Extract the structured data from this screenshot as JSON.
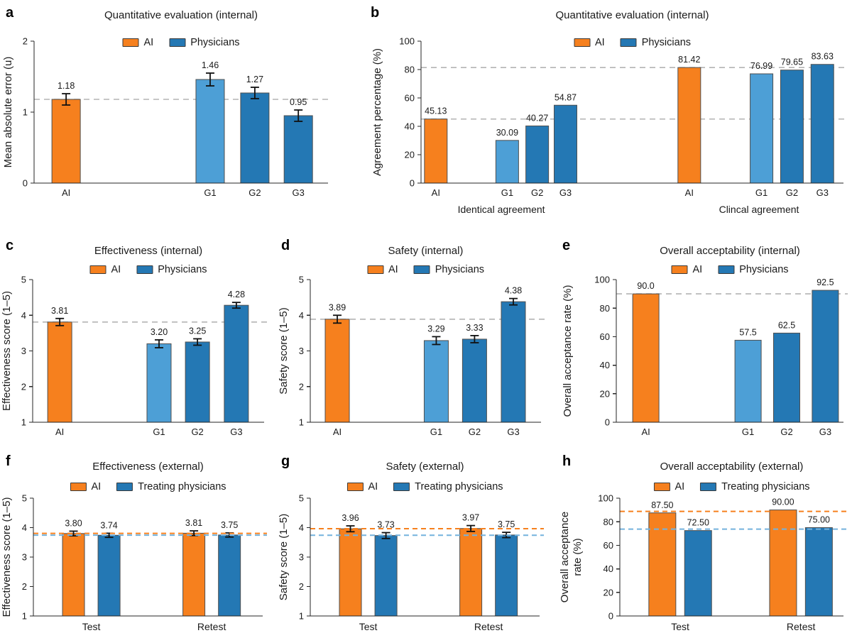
{
  "figure_background": "#ffffff",
  "colors": {
    "ai_orange": "#F6801E",
    "physicians_blue": "#2478B4",
    "physicians_light_blue": "#4D9FD6",
    "bar_edge": "#4F4F4F",
    "gray_dash": "#B3B3B3",
    "orange_dash": "#F6801E",
    "blue_dash": "#74B2DE",
    "axis": "#262626",
    "text": "#1A1A1A",
    "error_bar": "#111111"
  },
  "chart_data": [
    {
      "panel_letter": "a",
      "type": "bar",
      "title": "Quantitative evaluation (internal)",
      "ylabel_lines": [
        "Mean absolute error (u)"
      ],
      "ylim": [
        0,
        2
      ],
      "yticks": [
        0,
        1,
        2
      ],
      "legend": [
        {
          "label": "AI",
          "color": "ai_orange"
        },
        {
          "label": "Physicians",
          "color": "physicians_blue"
        }
      ],
      "bars": [
        {
          "tick": "AI",
          "value": 1.18,
          "display": "1.18",
          "err": 0.08,
          "color": "ai_orange",
          "pos": 0.109
        },
        {
          "tick": "G1",
          "value": 1.46,
          "display": "1.46",
          "err": 0.09,
          "color": "physicians_light_blue",
          "pos": 0.599
        },
        {
          "tick": "G2",
          "value": 1.27,
          "display": "1.27",
          "err": 0.08,
          "color": "physicians_blue",
          "pos": 0.751
        },
        {
          "tick": "G3",
          "value": 0.95,
          "display": "0.95",
          "err": 0.08,
          "color": "physicians_blue",
          "pos": 0.899
        }
      ],
      "group_labels": [],
      "ref_lines": [
        {
          "value": 1.18,
          "color": "gray_dash",
          "front": false
        }
      ]
    },
    {
      "panel_letter": "b",
      "type": "bar",
      "title": "Quantitative evaluation (internal)",
      "ylabel_lines": [
        "Agreement percentage (%)"
      ],
      "ylim": [
        0,
        100
      ],
      "yticks": [
        0,
        20,
        40,
        60,
        80,
        100
      ],
      "legend": [
        {
          "label": "AI",
          "color": "ai_orange"
        },
        {
          "label": "Physicians",
          "color": "physicians_blue"
        }
      ],
      "bars": [
        {
          "tick": "AI",
          "value": 45.13,
          "display": "45.13",
          "err": null,
          "color": "ai_orange",
          "pos": 0.035
        },
        {
          "tick": "G1",
          "value": 30.09,
          "display": "30.09",
          "err": null,
          "color": "physicians_light_blue",
          "pos": 0.204
        },
        {
          "tick": "G2",
          "value": 40.27,
          "display": "40.27",
          "err": null,
          "color": "physicians_blue",
          "pos": 0.275
        },
        {
          "tick": "G3",
          "value": 54.87,
          "display": "54.87",
          "err": null,
          "color": "physicians_blue",
          "pos": 0.342
        },
        {
          "tick": "AI",
          "value": 81.42,
          "display": "81.42",
          "err": null,
          "color": "ai_orange",
          "pos": 0.635
        },
        {
          "tick": "G1",
          "value": 76.99,
          "display": "76.99",
          "err": null,
          "color": "physicians_light_blue",
          "pos": 0.806
        },
        {
          "tick": "G2",
          "value": 79.65,
          "display": "79.65",
          "err": null,
          "color": "physicians_blue",
          "pos": 0.878
        },
        {
          "tick": "G3",
          "value": 83.63,
          "display": "83.63",
          "err": null,
          "color": "physicians_blue",
          "pos": 0.95
        }
      ],
      "group_labels": [
        {
          "label": "Identical agreement",
          "pos": 0.19
        },
        {
          "label": "Clincal agreement",
          "pos": 0.8
        }
      ],
      "ref_lines": [
        {
          "value": 45.13,
          "color": "gray_dash",
          "front": false
        },
        {
          "value": 81.42,
          "color": "gray_dash",
          "front": false
        }
      ]
    },
    {
      "panel_letter": "c",
      "type": "bar",
      "title": "Effectiveness (internal)",
      "ylabel_lines": [
        "Effectiveness score (1–5)"
      ],
      "ylim": [
        1,
        5
      ],
      "yticks": [
        1,
        2,
        3,
        4,
        5
      ],
      "legend": [
        {
          "label": "AI",
          "color": "ai_orange"
        },
        {
          "label": "Physicians",
          "color": "physicians_blue"
        }
      ],
      "bars": [
        {
          "tick": "AI",
          "value": 3.81,
          "display": "3.81",
          "err": 0.1,
          "color": "ai_orange",
          "pos": 0.117
        },
        {
          "tick": "G1",
          "value": 3.2,
          "display": "3.20",
          "err": 0.11,
          "color": "physicians_light_blue",
          "pos": 0.546
        },
        {
          "tick": "G2",
          "value": 3.25,
          "display": "3.25",
          "err": 0.09,
          "color": "physicians_blue",
          "pos": 0.712
        },
        {
          "tick": "G3",
          "value": 4.28,
          "display": "4.28",
          "err": 0.08,
          "color": "physicians_blue",
          "pos": 0.88
        }
      ],
      "group_labels": [],
      "ref_lines": [
        {
          "value": 3.81,
          "color": "gray_dash",
          "front": false
        }
      ]
    },
    {
      "panel_letter": "d",
      "type": "bar",
      "title": "Safety (internal)",
      "ylabel_lines": [
        "Safety score (1–5)"
      ],
      "ylim": [
        1,
        5
      ],
      "yticks": [
        1,
        2,
        3,
        4,
        5
      ],
      "legend": [
        {
          "label": "AI",
          "color": "ai_orange"
        },
        {
          "label": "Physicians",
          "color": "physicians_blue"
        }
      ],
      "bars": [
        {
          "tick": "AI",
          "value": 3.89,
          "display": "3.89",
          "err": 0.11,
          "color": "ai_orange",
          "pos": 0.117
        },
        {
          "tick": "G1",
          "value": 3.29,
          "display": "3.29",
          "err": 0.11,
          "color": "physicians_light_blue",
          "pos": 0.546
        },
        {
          "tick": "G2",
          "value": 3.33,
          "display": "3.33",
          "err": 0.1,
          "color": "physicians_blue",
          "pos": 0.712
        },
        {
          "tick": "G3",
          "value": 4.38,
          "display": "4.38",
          "err": 0.09,
          "color": "physicians_blue",
          "pos": 0.88
        }
      ],
      "group_labels": [],
      "ref_lines": [
        {
          "value": 3.89,
          "color": "gray_dash",
          "front": false
        }
      ]
    },
    {
      "panel_letter": "e",
      "type": "bar",
      "title": "Overall acceptability (internal)",
      "ylabel_lines": [
        "Overall acceptance rate (%)"
      ],
      "ylim": [
        0,
        100
      ],
      "yticks": [
        0,
        20,
        40,
        60,
        80,
        100
      ],
      "legend": [
        {
          "label": "AI",
          "color": "ai_orange"
        },
        {
          "label": "Physicians",
          "color": "physicians_blue"
        }
      ],
      "bars": [
        {
          "tick": "AI",
          "value": 90.0,
          "display": "90.0",
          "err": null,
          "color": "ai_orange",
          "pos": 0.13
        },
        {
          "tick": "G1",
          "value": 57.5,
          "display": "57.5",
          "err": null,
          "color": "physicians_light_blue",
          "pos": 0.58
        },
        {
          "tick": "G2",
          "value": 62.5,
          "display": "62.5",
          "err": null,
          "color": "physicians_blue",
          "pos": 0.75
        },
        {
          "tick": "G3",
          "value": 92.5,
          "display": "92.5",
          "err": null,
          "color": "physicians_blue",
          "pos": 0.92
        }
      ],
      "group_labels": [],
      "ref_lines": [
        {
          "value": 90.0,
          "color": "gray_dash",
          "front": false
        }
      ]
    },
    {
      "panel_letter": "f",
      "type": "bar",
      "title": "Effectiveness (external)",
      "ylabel_lines": [
        "Effectiveness score (1–5)"
      ],
      "ylim": [
        1,
        5
      ],
      "yticks": [
        1,
        2,
        3,
        4,
        5
      ],
      "legend": [
        {
          "label": "AI",
          "color": "ai_orange"
        },
        {
          "label": "Treating physicians",
          "color": "physicians_blue"
        }
      ],
      "bars": [
        {
          "tick": "",
          "value": 3.8,
          "display": "3.80",
          "err": 0.08,
          "color": "ai_orange",
          "pos": 0.175
        },
        {
          "tick": "",
          "value": 3.74,
          "display": "3.74",
          "err": 0.07,
          "color": "physicians_blue",
          "pos": 0.33
        },
        {
          "tick": "",
          "value": 3.81,
          "display": "3.81",
          "err": 0.08,
          "color": "ai_orange",
          "pos": 0.7
        },
        {
          "tick": "",
          "value": 3.75,
          "display": "3.75",
          "err": 0.07,
          "color": "physicians_blue",
          "pos": 0.855
        }
      ],
      "group_labels": [
        {
          "label": "Test",
          "pos": 0.2525
        },
        {
          "label": "Retest",
          "pos": 0.7775
        }
      ],
      "ref_lines": [
        {
          "value": 3.805,
          "color": "orange_dash",
          "front": true
        },
        {
          "value": 3.745,
          "color": "blue_dash",
          "front": true
        }
      ]
    },
    {
      "panel_letter": "g",
      "type": "bar",
      "title": "Safety (external)",
      "ylabel_lines": [
        "Safety score (1–5)"
      ],
      "ylim": [
        1,
        5
      ],
      "yticks": [
        1,
        2,
        3,
        4,
        5
      ],
      "legend": [
        {
          "label": "AI",
          "color": "ai_orange"
        },
        {
          "label": "Treating physicians",
          "color": "physicians_blue"
        }
      ],
      "bars": [
        {
          "tick": "",
          "value": 3.96,
          "display": "3.96",
          "err": 0.1,
          "color": "ai_orange",
          "pos": 0.175
        },
        {
          "tick": "",
          "value": 3.73,
          "display": "3.73",
          "err": 0.1,
          "color": "physicians_blue",
          "pos": 0.33
        },
        {
          "tick": "",
          "value": 3.97,
          "display": "3.97",
          "err": 0.1,
          "color": "ai_orange",
          "pos": 0.7
        },
        {
          "tick": "",
          "value": 3.75,
          "display": "3.75",
          "err": 0.09,
          "color": "physicians_blue",
          "pos": 0.855
        }
      ],
      "group_labels": [
        {
          "label": "Test",
          "pos": 0.2525
        },
        {
          "label": "Retest",
          "pos": 0.7775
        }
      ],
      "ref_lines": [
        {
          "value": 3.965,
          "color": "orange_dash",
          "front": true
        },
        {
          "value": 3.74,
          "color": "blue_dash",
          "front": true
        }
      ]
    },
    {
      "panel_letter": "h",
      "type": "bar",
      "title": "Overall acceptability (external)",
      "ylabel_lines": [
        "Overall acceptance",
        "rate (%)"
      ],
      "ylim": [
        0,
        100
      ],
      "yticks": [
        0,
        20,
        40,
        60,
        80,
        100
      ],
      "legend": [
        {
          "label": "AI",
          "color": "ai_orange"
        },
        {
          "label": "Treating physicians",
          "color": "physicians_blue"
        }
      ],
      "bars": [
        {
          "tick": "",
          "value": 87.5,
          "display": "87.50",
          "err": null,
          "color": "ai_orange",
          "pos": 0.19
        },
        {
          "tick": "",
          "value": 72.5,
          "display": "72.50",
          "err": null,
          "color": "physicians_blue",
          "pos": 0.35
        },
        {
          "tick": "",
          "value": 90.0,
          "display": "90.00",
          "err": null,
          "color": "ai_orange",
          "pos": 0.73
        },
        {
          "tick": "",
          "value": 75.0,
          "display": "75.00",
          "err": null,
          "color": "physicians_blue",
          "pos": 0.89
        }
      ],
      "group_labels": [
        {
          "label": "Test",
          "pos": 0.27
        },
        {
          "label": "Retest",
          "pos": 0.81
        }
      ],
      "ref_lines": [
        {
          "value": 88.75,
          "color": "orange_dash",
          "front": true
        },
        {
          "value": 73.75,
          "color": "blue_dash",
          "front": true
        }
      ]
    }
  ]
}
